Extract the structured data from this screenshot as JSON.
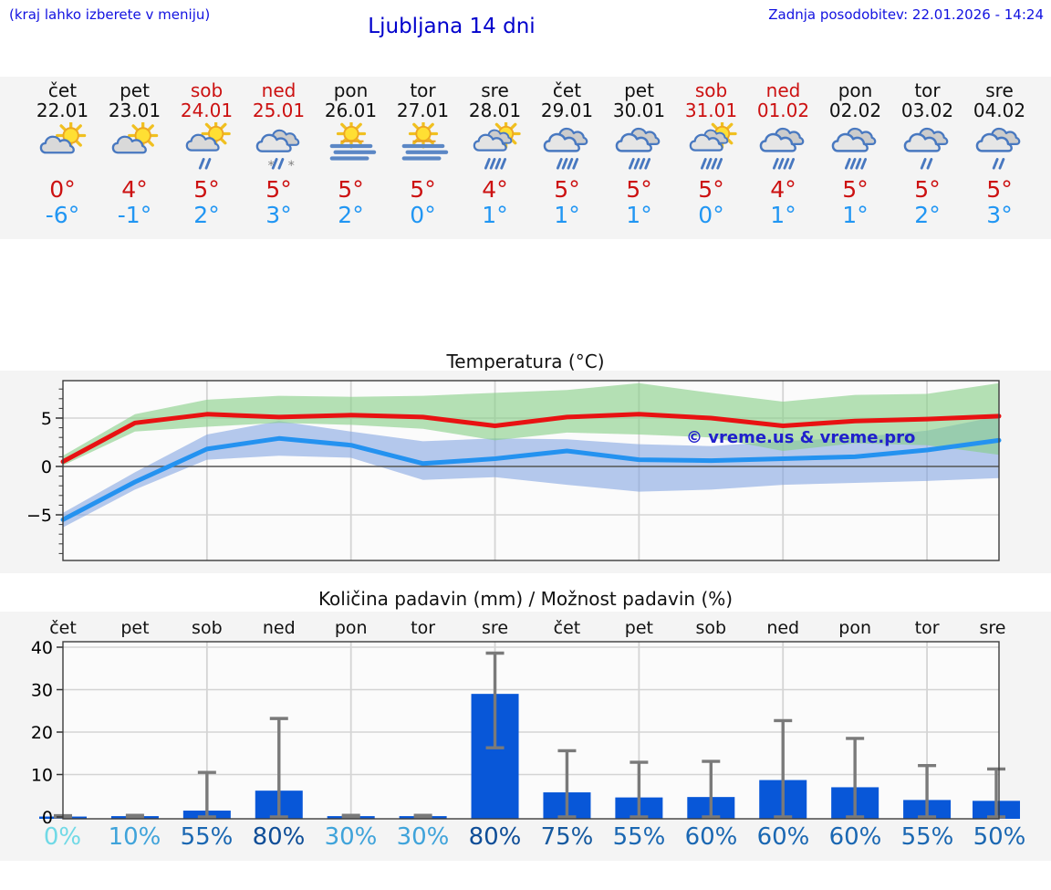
{
  "header": {
    "hint": "(kraj lahko izberete v meniju)",
    "title": "Ljubljana 14 dni",
    "updated": "Zadnja posodobitev: 22.01.2026 - 14:24"
  },
  "colors": {
    "temp_max": "#cc1111",
    "temp_min": "#2196f3",
    "max_line": "#e81212",
    "min_line": "#2492f0",
    "max_band": "#86cf86",
    "min_band": "#7a9fe0",
    "bar_blue": "#0857d8",
    "error_gray": "#7a7a7a",
    "link_blue": "#1212e0"
  },
  "days": [
    {
      "name": "čet",
      "date": "22.01",
      "weekend": false,
      "icon": "sun-cloud",
      "tmax": "0°",
      "tmin": "-6°"
    },
    {
      "name": "pet",
      "date": "23.01",
      "weekend": false,
      "icon": "sun-cloud",
      "tmax": "4°",
      "tmin": "-1°"
    },
    {
      "name": "sob",
      "date": "24.01",
      "weekend": true,
      "icon": "sun-cloud-rain2",
      "tmax": "5°",
      "tmin": "2°"
    },
    {
      "name": "ned",
      "date": "25.01",
      "weekend": true,
      "icon": "cloud-sleet",
      "tmax": "5°",
      "tmin": "3°"
    },
    {
      "name": "pon",
      "date": "26.01",
      "weekend": false,
      "icon": "fog-sun",
      "tmax": "5°",
      "tmin": "2°"
    },
    {
      "name": "tor",
      "date": "27.01",
      "weekend": false,
      "icon": "fog-sun",
      "tmax": "5°",
      "tmin": "0°"
    },
    {
      "name": "sre",
      "date": "28.01",
      "weekend": false,
      "icon": "sun-cloud-rain4",
      "tmax": "4°",
      "tmin": "1°"
    },
    {
      "name": "čet",
      "date": "29.01",
      "weekend": false,
      "icon": "cloud-rain4",
      "tmax": "5°",
      "tmin": "1°"
    },
    {
      "name": "pet",
      "date": "30.01",
      "weekend": false,
      "icon": "cloud-rain4",
      "tmax": "5°",
      "tmin": "1°"
    },
    {
      "name": "sob",
      "date": "31.01",
      "weekend": true,
      "icon": "sun-cloud-rain4",
      "tmax": "5°",
      "tmin": "0°"
    },
    {
      "name": "ned",
      "date": "01.02",
      "weekend": true,
      "icon": "cloud-rain4",
      "tmax": "4°",
      "tmin": "1°"
    },
    {
      "name": "pon",
      "date": "02.02",
      "weekend": false,
      "icon": "cloud-rain4",
      "tmax": "5°",
      "tmin": "1°"
    },
    {
      "name": "tor",
      "date": "03.02",
      "weekend": false,
      "icon": "cloud-rain2",
      "tmax": "5°",
      "tmin": "2°"
    },
    {
      "name": "sre",
      "date": "04.02",
      "weekend": false,
      "icon": "cloud-rain2",
      "tmax": "5°",
      "tmin": "3°"
    }
  ],
  "chart_data": [
    {
      "type": "line",
      "title": "Temperatura (°C)",
      "xlabel": "",
      "ylabel": "",
      "categories": [
        "22.01",
        "23.01",
        "24.01",
        "25.01",
        "26.01",
        "27.01",
        "28.01",
        "29.01",
        "30.01",
        "31.01",
        "01.02",
        "02.02",
        "03.02",
        "04.02"
      ],
      "ylim": [
        -9.7,
        8.9
      ],
      "yticks": [
        5,
        0,
        -5
      ],
      "grid_x_day_indexes": [
        2,
        4,
        6,
        8,
        10,
        12
      ],
      "watermark": "© vreme.us & vreme.pro",
      "series": [
        {
          "name": "temp_max",
          "values": [
            0.5,
            4.5,
            5.4,
            5.1,
            5.3,
            5.1,
            4.2,
            5.1,
            5.4,
            5.0,
            4.2,
            4.7,
            4.9,
            5.2
          ]
        },
        {
          "name": "temp_max_range_hi",
          "values": [
            1.1,
            5.4,
            6.9,
            7.3,
            7.2,
            7.3,
            7.6,
            7.9,
            8.6,
            7.6,
            6.7,
            7.4,
            7.5,
            8.6
          ]
        },
        {
          "name": "temp_max_range_lo",
          "values": [
            0.1,
            3.6,
            4.1,
            4.5,
            4.3,
            3.9,
            2.7,
            3.5,
            3.3,
            3.0,
            1.6,
            2.4,
            2.2,
            1.2
          ]
        },
        {
          "name": "temp_min",
          "values": [
            -5.5,
            -1.6,
            1.8,
            2.9,
            2.2,
            0.3,
            0.8,
            1.6,
            0.7,
            0.6,
            0.8,
            1.0,
            1.7,
            2.7
          ]
        },
        {
          "name": "temp_min_range_hi",
          "values": [
            -4.8,
            -0.6,
            3.3,
            4.7,
            3.6,
            2.6,
            2.9,
            2.8,
            2.3,
            2.1,
            2.6,
            3.0,
            3.7,
            5.2
          ]
        },
        {
          "name": "temp_min_range_lo",
          "values": [
            -6.3,
            -2.4,
            0.7,
            1.1,
            0.9,
            -1.4,
            -1.1,
            -1.9,
            -2.6,
            -2.4,
            -1.9,
            -1.7,
            -1.5,
            -1.2
          ]
        }
      ]
    },
    {
      "type": "bar",
      "title": "Količina padavin (mm) / Možnost padavin (%)",
      "xlabel": "",
      "ylabel": "",
      "categories": [
        "čet",
        "pet",
        "sob",
        "ned",
        "pon",
        "tor",
        "sre",
        "čet",
        "pet",
        "sob",
        "ned",
        "pon",
        "tor",
        "sre"
      ],
      "values": [
        0.1,
        0.2,
        1.5,
        6.2,
        0.2,
        0.2,
        29,
        5.8,
        4.6,
        4.7,
        8.7,
        7.0,
        4.0,
        3.8
      ],
      "error_hi": [
        0.3,
        0.4,
        10.5,
        23.2,
        0.4,
        0.4,
        38.6,
        15.6,
        12.9,
        13.1,
        22.7,
        18.5,
        12.1,
        11.3
      ],
      "error_lo": [
        0,
        0,
        0,
        0,
        0,
        0,
        16.3,
        0,
        0,
        0,
        0,
        0,
        0,
        0
      ],
      "ylim": [
        0,
        41
      ],
      "yticks": [
        0,
        10,
        20,
        30,
        40
      ],
      "grid_x_day_indexes": [
        2,
        4,
        6,
        8,
        10,
        12
      ],
      "percent_labels": [
        {
          "text": "0%",
          "color": "#70d9e6"
        },
        {
          "text": "10%",
          "color": "#3fa3da"
        },
        {
          "text": "55%",
          "color": "#1a67b2"
        },
        {
          "text": "80%",
          "color": "#0e4d97"
        },
        {
          "text": "30%",
          "color": "#3fa3da"
        },
        {
          "text": "30%",
          "color": "#3fa3da"
        },
        {
          "text": "80%",
          "color": "#0e4d97"
        },
        {
          "text": "75%",
          "color": "#15599f"
        },
        {
          "text": "55%",
          "color": "#1a67b2"
        },
        {
          "text": "60%",
          "color": "#1a67b2"
        },
        {
          "text": "60%",
          "color": "#1a67b2"
        },
        {
          "text": "60%",
          "color": "#1a67b2"
        },
        {
          "text": "55%",
          "color": "#1a67b2"
        },
        {
          "text": "50%",
          "color": "#1a67b2"
        }
      ]
    }
  ]
}
